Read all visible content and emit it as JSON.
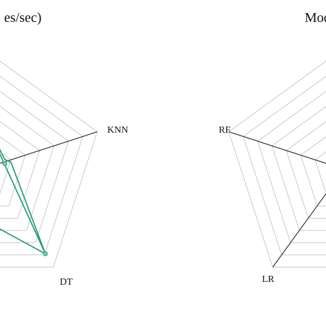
{
  "chart_data": [
    {
      "type": "radar",
      "title_fragment": "es/sec)",
      "axes": [
        "KNN",
        "DT"
      ],
      "rings": 8,
      "grid": true,
      "series": [
        {
          "color": "#2a9d78",
          "points": [
            {
              "axis": "KNN",
              "value": 0.0
            },
            {
              "axis": "DT",
              "value": 1.0
            }
          ]
        }
      ]
    },
    {
      "type": "radar",
      "title_fragment": "Mod",
      "axes": [
        "RF",
        "LR"
      ],
      "rings": 8,
      "grid": true,
      "series": []
    }
  ],
  "colors": {
    "grid": "#c8c8c8",
    "spoke": "#2e2e2e",
    "series": "#2a9d78"
  }
}
